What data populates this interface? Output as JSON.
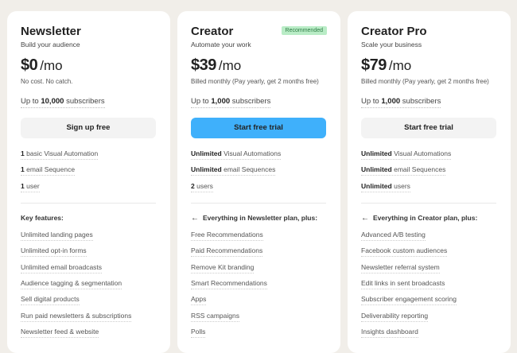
{
  "plans": [
    {
      "title": "Newsletter",
      "badge": "",
      "subtitle": "Build your audience",
      "price": "$0",
      "period": "/mo",
      "note": "No cost. No catch.",
      "subs_prefix": "Up to",
      "subs_count": "10,000",
      "subs_suffix": "subscribers",
      "button": "Sign up free",
      "primary": false,
      "limits": [
        {
          "bold": "1",
          "text": "basic Visual Automation"
        },
        {
          "bold": "1",
          "text": "email Sequence"
        },
        {
          "bold": "1",
          "text": "user"
        }
      ],
      "features_header": "Key features:",
      "header_arrow": false,
      "features": [
        "Unlimited landing pages",
        "Unlimited opt-in forms",
        "Unlimited email broadcasts",
        "Audience tagging & segmentation",
        "Sell digital products",
        "Run paid newsletters & subscriptions",
        "Newsletter feed & website"
      ]
    },
    {
      "title": "Creator",
      "badge": "Recommended",
      "subtitle": "Automate your work",
      "price": "$39",
      "period": "/mo",
      "note": "Billed monthly (Pay yearly, get 2 months free)",
      "subs_prefix": "Up to",
      "subs_count": "1,000",
      "subs_suffix": "subscribers",
      "button": "Start free trial",
      "primary": true,
      "limits": [
        {
          "bold": "Unlimited",
          "text": "Visual Automations"
        },
        {
          "bold": "Unlimited",
          "text": "email Sequences"
        },
        {
          "bold": "2",
          "text": "users"
        }
      ],
      "features_header": "Everything in Newsletter plan, plus:",
      "header_arrow": true,
      "features": [
        "Free Recommendations",
        "Paid Recommendations",
        "Remove Kit branding",
        "Smart Recommendations",
        "Apps",
        "RSS campaigns",
        "Polls"
      ]
    },
    {
      "title": "Creator Pro",
      "badge": "",
      "subtitle": "Scale your business",
      "price": "$79",
      "period": "/mo",
      "note": "Billed monthly (Pay yearly, get 2 months free)",
      "subs_prefix": "Up to",
      "subs_count": "1,000",
      "subs_suffix": "subscribers",
      "button": "Start free trial",
      "primary": false,
      "limits": [
        {
          "bold": "Unlimited",
          "text": "Visual Automations"
        },
        {
          "bold": "Unlimited",
          "text": "email Sequences"
        },
        {
          "bold": "Unlimited",
          "text": "users"
        }
      ],
      "features_header": "Everything in Creator plan, plus:",
      "header_arrow": true,
      "features": [
        "Advanced A/B testing",
        "Facebook custom audiences",
        "Newsletter referral system",
        "Edit links in sent broadcasts",
        "Subscriber engagement scoring",
        "Deliverability reporting",
        "Insights dashboard"
      ]
    }
  ],
  "colors": {
    "background": "#f1eee9",
    "primary_button": "#3fb0fb",
    "badge_bg": "#b9ecc6",
    "badge_text": "#2f7d45"
  }
}
